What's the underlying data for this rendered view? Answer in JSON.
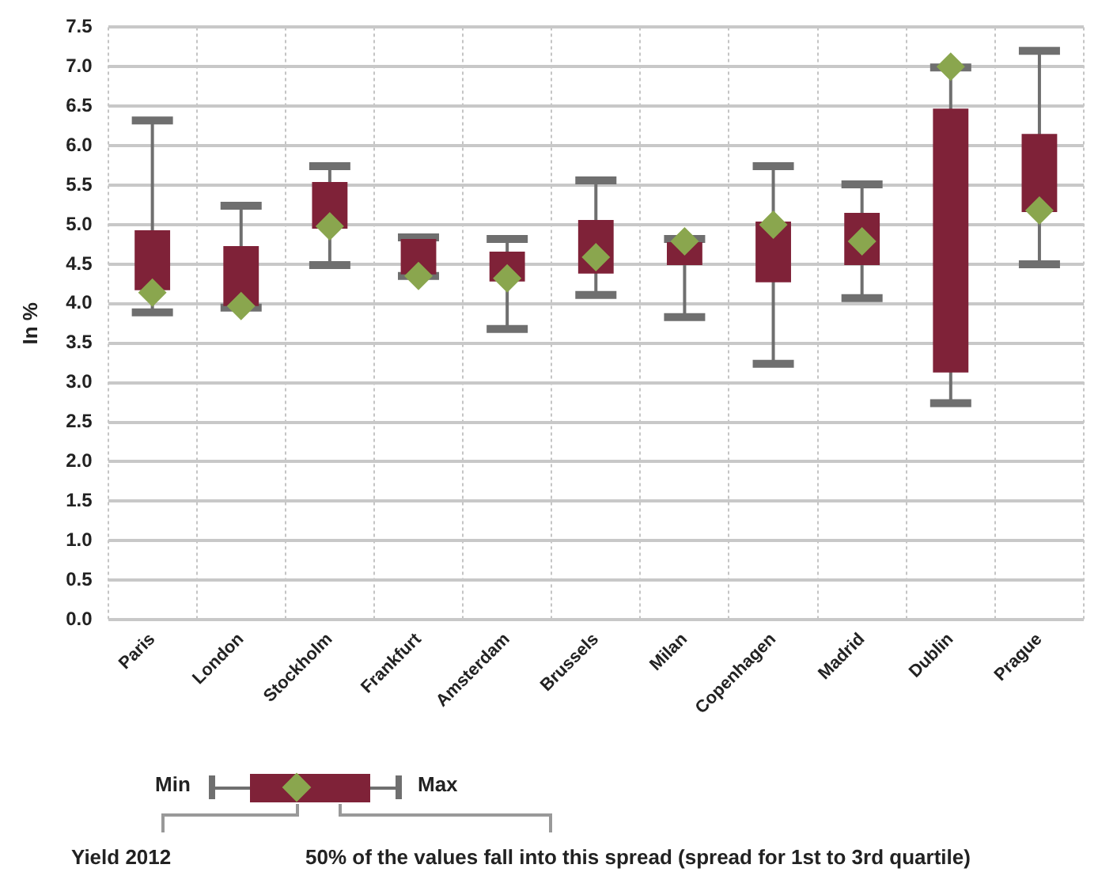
{
  "chart_data": {
    "type": "box",
    "ylabel": "In %",
    "color": "#7f2238",
    "categories": [
      "Paris",
      "London",
      "Stockholm",
      "Frankfurt",
      "Amsterdam",
      "Brussels",
      "Milan",
      "Copenhagen",
      "Madrid",
      "Dublin",
      "Prague"
    ],
    "boxes": [
      {
        "low": 3.89,
        "q1": 4.17,
        "q3": 4.93,
        "high": 6.32
      },
      {
        "low": 3.95,
        "q1": 3.97,
        "q3": 4.73,
        "high": 5.24
      },
      {
        "low": 4.49,
        "q1": 4.95,
        "q3": 5.54,
        "high": 5.74
      },
      {
        "low": 4.35,
        "q1": 4.37,
        "q3": 4.82,
        "high": 4.84
      },
      {
        "low": 3.68,
        "q1": 4.28,
        "q3": 4.66,
        "high": 4.82
      },
      {
        "low": 4.11,
        "q1": 4.38,
        "q3": 5.06,
        "high": 5.56
      },
      {
        "low": 3.83,
        "q1": 4.49,
        "q3": 4.78,
        "high": 4.82
      },
      {
        "low": 3.24,
        "q1": 4.27,
        "q3": 5.04,
        "high": 5.74
      },
      {
        "low": 4.07,
        "q1": 4.49,
        "q3": 5.15,
        "high": 5.51
      },
      {
        "low": 2.74,
        "q1": 3.13,
        "q3": 6.47,
        "high": 6.99
      },
      {
        "low": 4.5,
        "q1": 5.16,
        "q3": 6.15,
        "high": 7.2
      }
    ],
    "series": [
      {
        "name": "Yield 2012",
        "type": "scatter",
        "color": "#8aa64e",
        "marker": "diamond",
        "x": [
          "Paris",
          "London",
          "Stockholm",
          "Frankfurt",
          "Amsterdam",
          "Brussels",
          "Milan",
          "Copenhagen",
          "Madrid",
          "Dublin",
          "Prague"
        ],
        "values": [
          4.14,
          3.97,
          4.98,
          4.35,
          4.32,
          4.59,
          4.79,
          5.0,
          4.79,
          7.0,
          5.18
        ]
      }
    ],
    "ylim": [
      0,
      7.5
    ],
    "yticks": [
      {
        "value": 0,
        "label": "0.0"
      },
      {
        "value": 0.5,
        "label": "0.5"
      },
      {
        "value": 1,
        "label": "1.0"
      },
      {
        "value": 1.5,
        "label": "1.5"
      },
      {
        "value": 2,
        "label": "2.0"
      },
      {
        "value": 2.5,
        "label": "2.5"
      },
      {
        "value": 3,
        "label": "3.0"
      },
      {
        "value": 3.5,
        "label": "3.5"
      },
      {
        "value": 4,
        "label": "4.0"
      },
      {
        "value": 4.5,
        "label": "4.5"
      },
      {
        "value": 5,
        "label": "5.0"
      },
      {
        "value": 5.5,
        "label": "5.5"
      },
      {
        "value": 6,
        "label": "6.0"
      },
      {
        "value": 6.5,
        "label": "6.5"
      },
      {
        "value": 7,
        "label": "7.0"
      },
      {
        "value": 7.5,
        "label": "7.5"
      }
    ],
    "grid": true,
    "legend": "bottom",
    "annotations": [
      "Min",
      "Max",
      "50% of the values fall into this spread (spread for 1st to 3rd quartile)"
    ]
  }
}
